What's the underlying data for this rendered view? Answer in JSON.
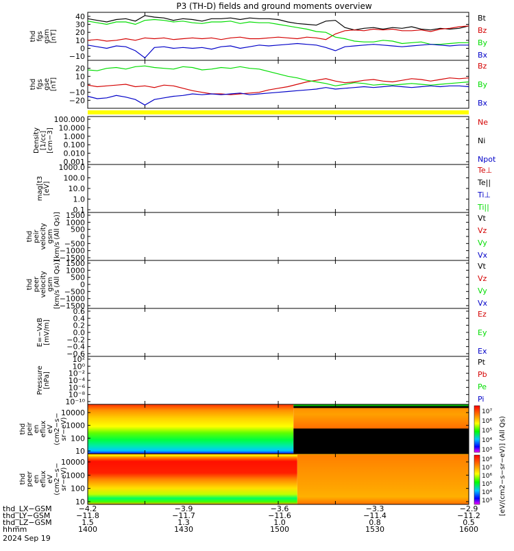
{
  "title": "P3 (TH-D) fields and ground moments overview",
  "colors": {
    "black": "#000000",
    "red": "#d40000",
    "green": "#00dd00",
    "blue": "#0000c8",
    "yellow": "#ffff00"
  },
  "chart_data": [
    {
      "id": "fgs_gsm",
      "type": "line",
      "ylabel": [
        "thd",
        "fgs",
        "gsm",
        "[nT]"
      ],
      "ylim": [
        -15,
        45
      ],
      "yticks": [
        "40",
        "30",
        "20",
        "10",
        "0",
        "−10"
      ],
      "tick_values": [
        40,
        30,
        20,
        10,
        0,
        -10
      ],
      "legend": [
        "Bt",
        "Bz",
        "By",
        "Bx"
      ],
      "legend_colors": [
        "#000000",
        "#d40000",
        "#00dd00",
        "#0000c8"
      ],
      "series": [
        {
          "name": "Bt",
          "color": "#000000",
          "x": [
            1400,
            1405,
            1410,
            1415,
            1420,
            1425,
            1430,
            1435,
            1440,
            1445,
            1450,
            1455,
            1460,
            1465,
            1470,
            1475,
            1480,
            1485,
            1490,
            1495,
            1500,
            1505,
            1510,
            1515,
            1520,
            1525,
            1530,
            1535,
            1540,
            1545,
            1550,
            1555,
            1560,
            1565,
            1570,
            1575,
            1580,
            1585,
            1590,
            1595,
            1600
          ],
          "values": [
            37,
            35,
            33,
            36,
            37,
            34,
            41,
            39,
            38,
            35,
            37,
            36,
            34,
            37,
            37,
            38,
            36,
            38,
            37,
            37,
            36,
            33,
            31,
            30,
            29,
            34,
            35,
            26,
            23,
            25,
            26,
            24,
            26,
            25,
            27,
            24,
            23,
            25,
            24,
            25,
            28
          ]
        },
        {
          "name": "Bz",
          "color": "#d40000",
          "x": [
            1400,
            1405,
            1410,
            1415,
            1420,
            1425,
            1430,
            1435,
            1440,
            1445,
            1450,
            1455,
            1460,
            1465,
            1470,
            1475,
            1480,
            1485,
            1490,
            1495,
            1500,
            1505,
            1510,
            1515,
            1520,
            1525,
            1530,
            1535,
            1540,
            1545,
            1550,
            1555,
            1560,
            1565,
            1570,
            1575,
            1580,
            1585,
            1590,
            1595,
            1600
          ],
          "values": [
            10,
            11,
            9,
            10,
            12,
            10,
            13,
            12,
            13,
            11,
            12,
            13,
            12,
            13,
            11,
            13,
            14,
            12,
            12,
            13,
            14,
            13,
            12,
            14,
            13,
            11,
            18,
            22,
            23,
            22,
            24,
            23,
            24,
            22,
            22,
            23,
            21,
            24,
            25,
            27,
            28
          ]
        },
        {
          "name": "By",
          "color": "#00dd00",
          "x": [
            1400,
            1405,
            1410,
            1415,
            1420,
            1425,
            1430,
            1435,
            1440,
            1445,
            1450,
            1455,
            1460,
            1465,
            1470,
            1475,
            1480,
            1485,
            1490,
            1495,
            1500,
            1505,
            1510,
            1515,
            1520,
            1525,
            1530,
            1535,
            1540,
            1545,
            1550,
            1555,
            1560,
            1565,
            1570,
            1575,
            1580,
            1585,
            1590,
            1595,
            1600
          ],
          "values": [
            34,
            32,
            30,
            33,
            33,
            30,
            35,
            36,
            35,
            33,
            34,
            32,
            31,
            33,
            33,
            34,
            31,
            33,
            32,
            32,
            30,
            28,
            26,
            24,
            21,
            20,
            14,
            12,
            9,
            8,
            8,
            10,
            9,
            6,
            7,
            8,
            5,
            5,
            6,
            7,
            7
          ]
        },
        {
          "name": "Bx",
          "color": "#0000c8",
          "x": [
            1400,
            1405,
            1410,
            1415,
            1420,
            1425,
            1430,
            1435,
            1440,
            1445,
            1450,
            1455,
            1460,
            1465,
            1470,
            1475,
            1480,
            1485,
            1490,
            1495,
            1500,
            1505,
            1510,
            1515,
            1520,
            1525,
            1530,
            1535,
            1540,
            1545,
            1550,
            1555,
            1560,
            1565,
            1570,
            1575,
            1580,
            1585,
            1590,
            1595,
            1600
          ],
          "values": [
            4,
            2,
            0,
            3,
            2,
            -3,
            -12,
            1,
            2,
            0,
            1,
            0,
            1,
            -1,
            2,
            3,
            0,
            2,
            4,
            3,
            4,
            5,
            6,
            5,
            4,
            1,
            -3,
            2,
            3,
            4,
            5,
            4,
            3,
            2,
            3,
            4,
            5,
            4,
            3,
            4,
            4
          ]
        }
      ]
    },
    {
      "id": "fgs_gse",
      "type": "line",
      "ylabel": [
        "thd",
        "fgs",
        "gse",
        "[nT]"
      ],
      "ylim": [
        -30,
        30
      ],
      "yticks": [
        "20",
        "10",
        "0",
        "−10",
        "−20"
      ],
      "tick_values": [
        20,
        10,
        0,
        -10,
        -20
      ],
      "legend": [
        "Bz",
        "By",
        "Bx"
      ],
      "legend_colors": [
        "#d40000",
        "#00dd00",
        "#0000c8"
      ],
      "series": [
        {
          "name": "Bz",
          "color": "#d40000",
          "x": [
            1400,
            1405,
            1410,
            1415,
            1420,
            1425,
            1430,
            1435,
            1440,
            1445,
            1450,
            1455,
            1460,
            1465,
            1470,
            1475,
            1480,
            1485,
            1490,
            1495,
            1500,
            1505,
            1510,
            1515,
            1520,
            1525,
            1530,
            1535,
            1540,
            1545,
            1550,
            1555,
            1560,
            1565,
            1570,
            1575,
            1580,
            1585,
            1590,
            1595,
            1600
          ],
          "values": [
            -1,
            -3,
            -2,
            -1,
            0,
            -3,
            -2,
            -4,
            -1,
            -2,
            -5,
            -8,
            -10,
            -12,
            -12,
            -13,
            -12,
            -11,
            -10,
            -7,
            -5,
            -3,
            0,
            3,
            5,
            7,
            4,
            2,
            3,
            5,
            6,
            4,
            3,
            5,
            7,
            6,
            4,
            6,
            8,
            7,
            8
          ]
        },
        {
          "name": "By",
          "color": "#00dd00",
          "x": [
            1400,
            1405,
            1410,
            1415,
            1420,
            1425,
            1430,
            1435,
            1440,
            1445,
            1450,
            1455,
            1460,
            1465,
            1470,
            1475,
            1480,
            1485,
            1490,
            1495,
            1500,
            1505,
            1510,
            1515,
            1520,
            1525,
            1530,
            1535,
            1540,
            1545,
            1550,
            1555,
            1560,
            1565,
            1570,
            1575,
            1580,
            1585,
            1590,
            1595,
            1600
          ],
          "values": [
            18,
            17,
            20,
            21,
            19,
            22,
            23,
            21,
            20,
            19,
            22,
            21,
            18,
            19,
            21,
            20,
            22,
            20,
            19,
            16,
            13,
            10,
            8,
            5,
            3,
            1,
            -2,
            0,
            2,
            1,
            -1,
            0,
            -1,
            0,
            1,
            0,
            -1,
            0,
            1,
            2,
            3
          ]
        },
        {
          "name": "Bx",
          "color": "#0000c8",
          "x": [
            1400,
            1405,
            1410,
            1415,
            1420,
            1425,
            1430,
            1435,
            1440,
            1445,
            1450,
            1455,
            1460,
            1465,
            1470,
            1475,
            1480,
            1485,
            1490,
            1495,
            1500,
            1505,
            1510,
            1515,
            1520,
            1525,
            1530,
            1535,
            1540,
            1545,
            1550,
            1555,
            1560,
            1565,
            1570,
            1575,
            1580,
            1585,
            1590,
            1595,
            1600
          ],
          "values": [
            -15,
            -18,
            -17,
            -14,
            -16,
            -19,
            -26,
            -19,
            -17,
            -15,
            -14,
            -12,
            -13,
            -12,
            -13,
            -12,
            -11,
            -13,
            -12,
            -11,
            -10,
            -9,
            -8,
            -7,
            -6,
            -4,
            -6,
            -5,
            -4,
            -3,
            -4,
            -3,
            -2,
            -3,
            -4,
            -3,
            -2,
            -3,
            -2,
            -2,
            -3
          ]
        }
      ]
    },
    {
      "id": "density",
      "type": "line",
      "ylabel": [
        "Density",
        "[1/cc]",
        "[cm−3]"
      ],
      "yticks": [
        "100.000",
        "10.000",
        "1.000",
        "0.100",
        "0.010",
        "0.001"
      ],
      "legend": [
        "Ne",
        "Ni",
        "Npot"
      ],
      "legend_colors": [
        "#d40000",
        "#000000",
        "#0000c8"
      ],
      "series": []
    },
    {
      "id": "temperature",
      "type": "line",
      "ylabel": [
        "mag[t3",
        "[eV]"
      ],
      "yticks": [
        "1000.0",
        "100.0",
        "10.0",
        "1.0",
        "0.1"
      ],
      "legend": [
        "Te⊥",
        "Te||",
        "Ti⊥",
        "Ti||"
      ],
      "legend_colors": [
        "#d40000",
        "#000000",
        "#0000c8",
        "#00dd00"
      ],
      "series": []
    },
    {
      "id": "peir_velocity",
      "type": "line",
      "ylabel": [
        "thd",
        "peir",
        "velocity",
        "gsm",
        "[km/s (All Qs)]"
      ],
      "yticks": [
        "1500",
        "1000",
        "500",
        "0",
        "−500",
        "−1000",
        "−1500"
      ],
      "legend": [
        "Vt",
        "Vz",
        "Vy",
        "Vx"
      ],
      "legend_colors": [
        "#000000",
        "#d40000",
        "#00dd00",
        "#0000c8"
      ],
      "series": []
    },
    {
      "id": "peer_velocity",
      "type": "line",
      "ylabel": [
        "thd",
        "peer",
        "velocity",
        "gsm",
        "[km/s (All Qs)]"
      ],
      "yticks": [
        "1500",
        "1000",
        "500",
        "0",
        "−500",
        "−1000",
        "−1500"
      ],
      "legend": [
        "Vt",
        "Vz",
        "Vy",
        "Vx"
      ],
      "legend_colors": [
        "#000000",
        "#d40000",
        "#00dd00",
        "#0000c8"
      ],
      "series": []
    },
    {
      "id": "efield",
      "type": "line",
      "ylabel": [
        "E=−VxB",
        "[mV/m]"
      ],
      "yticks": [
        "0.6",
        "0.4",
        "0.2",
        "0.0",
        "−0.2",
        "−0.4",
        "−0.6"
      ],
      "legend": [
        "Ez",
        "Ey",
        "Ex"
      ],
      "legend_colors": [
        "#d40000",
        "#00dd00",
        "#0000c8"
      ],
      "series": []
    },
    {
      "id": "pressure",
      "type": "line",
      "ylabel": [
        "Pressure",
        "[nPa]"
      ],
      "yticks": [
        "10²",
        "10⁰",
        "10⁻²",
        "10⁻⁴",
        "10⁻⁶",
        "10⁻⁸",
        "10⁻¹⁰"
      ],
      "legend": [
        "Pt",
        "Pb",
        "Pe",
        "Pi"
      ],
      "legend_colors": [
        "#000000",
        "#d40000",
        "#00dd00",
        "#0000c8"
      ],
      "series": []
    },
    {
      "id": "peir_en_eflux",
      "type": "heatmap",
      "ylabel": [
        "thd",
        "peir",
        "en",
        "eflux",
        "eV",
        "(cm2−s−",
        "sr−eV)"
      ],
      "yticks": [
        "10000",
        "1000",
        "100",
        "10"
      ]
    },
    {
      "id": "peer_en_eflux",
      "type": "heatmap",
      "ylabel": [
        "thd",
        "peer",
        "en",
        "eflux",
        "eV",
        "(cm2−s−",
        "sr−eV)"
      ],
      "yticks": [
        "10000",
        "1000",
        "100",
        "10"
      ]
    },
    {
      "id": "colorbar",
      "type": "heatmap",
      "label": "[eV/(cm2−s−sr−eV)] (All Qs)",
      "upper_ticks": [
        "10⁷",
        "10⁶",
        "10⁵",
        "10⁴",
        "10³"
      ],
      "lower_ticks": [
        "10⁸",
        "10⁷",
        "10⁶",
        "10⁵",
        "10⁴",
        "10³"
      ]
    }
  ],
  "x_axis": {
    "rows": [
      {
        "label": "thd_LX−GSM",
        "values": [
          "−4.2",
          "−3.9",
          "−3.6",
          "−3.3",
          "−2.9"
        ]
      },
      {
        "label": "thd_LY−GSM",
        "values": [
          "−11.8",
          "−11.7",
          "−11.6",
          "−11.4",
          "−11.2"
        ]
      },
      {
        "label": "thd_LZ−GSM",
        "values": [
          "1.5",
          "1.3",
          "1.0",
          "0.8",
          "0.5"
        ]
      },
      {
        "label": "hhmm",
        "values": [
          "1400",
          "1430",
          "1500",
          "1530",
          "1600"
        ]
      }
    ],
    "date": "2024 Sep 19",
    "x_ticks": [
      1400,
      1430,
      1500,
      1530,
      1600
    ],
    "xlim": [
      1400,
      1600
    ]
  }
}
